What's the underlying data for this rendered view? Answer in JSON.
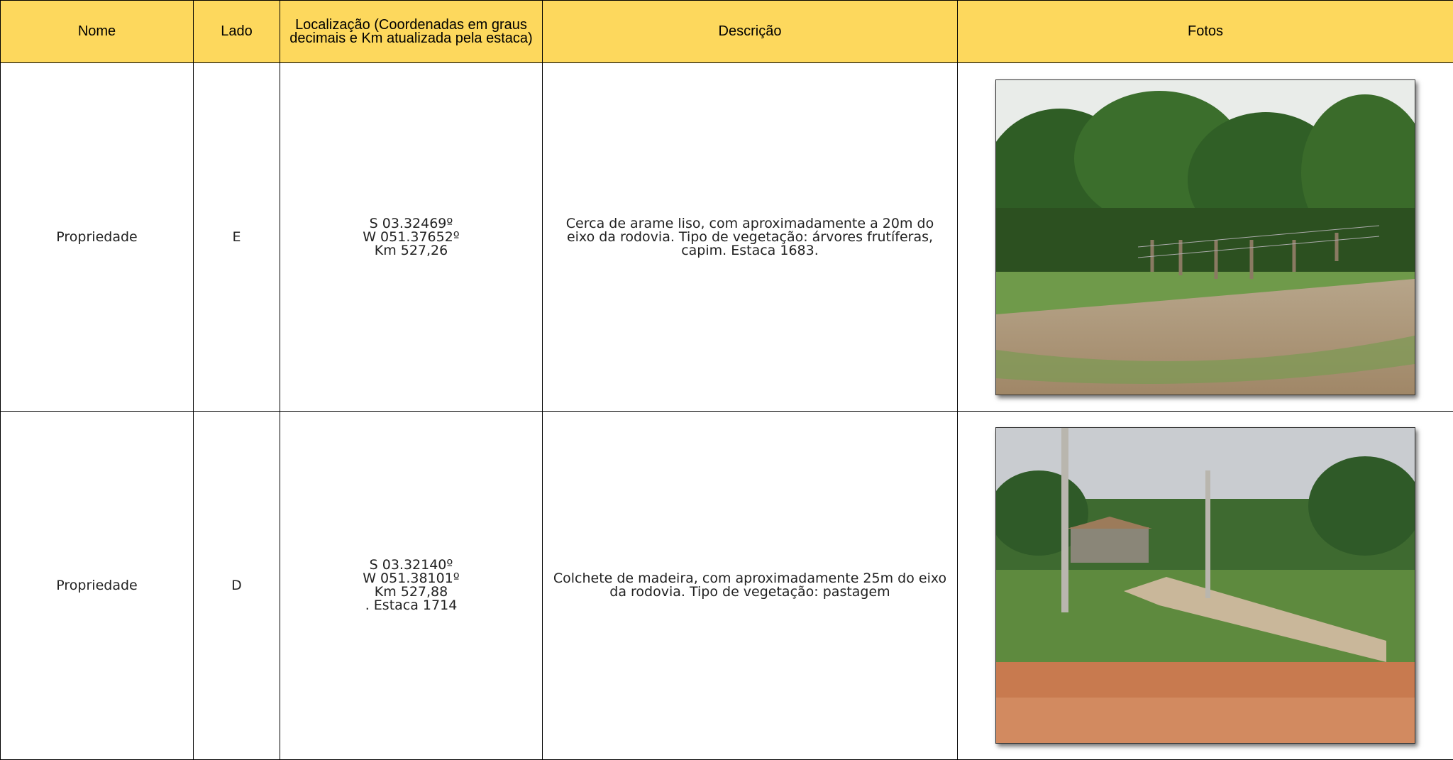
{
  "table": {
    "header": [
      "Nome",
      "Lado",
      "Localização (Coordenadas em graus decimais e Km atualizada pela estaca)",
      "Descrição",
      "Fotos"
    ],
    "rows": [
      {
        "nome": "Propriedade",
        "lado": "E",
        "localizacao": [
          "S 03.32469º",
          "W 051.37652º",
          "Km 527,26"
        ],
        "descricao": "Cerca de arame liso, com aproximadamente a 20m do eixo da rodovia. Tipo de vegetação: árvores frutíferas, capim. Estaca 1683."
      },
      {
        "nome": "Propriedade",
        "lado": "D",
        "localizacao": [
          "S 03.32140º",
          "W 051.38101º",
          "Km 527,88",
          ". Estaca 1714"
        ],
        "descricao": "Colchete de madeira, com aproximadamente 25m do eixo da rodovia. Tipo de vegetação: pastagem"
      }
    ]
  }
}
